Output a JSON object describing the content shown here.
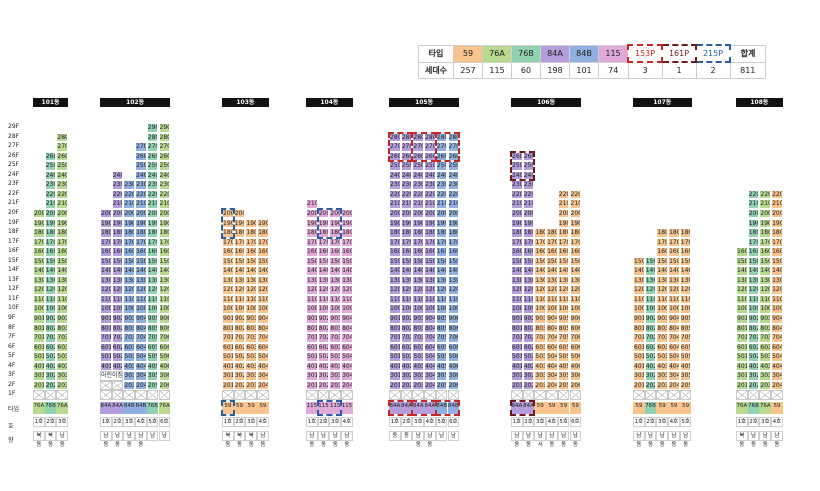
{
  "summary": {
    "type_label": "타입",
    "count_label": "세대수",
    "total_label": "합계",
    "total_value": "811",
    "types": [
      {
        "name": "59",
        "count": "257",
        "color": "#f7c48e"
      },
      {
        "name": "76A",
        "count": "115",
        "color": "#b9d98f"
      },
      {
        "name": "76B",
        "count": "60",
        "color": "#91d2b3"
      },
      {
        "name": "84A",
        "count": "198",
        "color": "#b39ddb"
      },
      {
        "name": "84B",
        "count": "101",
        "color": "#8fb0e0"
      },
      {
        "name": "115",
        "count": "74",
        "color": "#e0a9d8"
      },
      {
        "name": "153P",
        "count": "3",
        "color": "#c62828",
        "dashed": true
      },
      {
        "name": "161P",
        "count": "1",
        "color": "#6d1b1b",
        "dashed": true
      },
      {
        "name": "215P",
        "count": "2",
        "color": "#2a5fa8",
        "dashed": true
      }
    ]
  },
  "floor_labels": [
    "29F",
    "28F",
    "27F",
    "26F",
    "25F",
    "24F",
    "23F",
    "22F",
    "21F",
    "20F",
    "19F",
    "18F",
    "17F",
    "16F",
    "15F",
    "14F",
    "13F",
    "12F",
    "11F",
    "10F",
    "9F",
    "8F",
    "7F",
    "6F",
    "5F",
    "4F",
    "3F",
    "2F",
    "1F"
  ],
  "row_labels": {
    "type": "타입",
    "unit": "호",
    "dir": "향"
  },
  "colors": {
    "59": "#f7c48e",
    "76A": "#b9d98f",
    "76B": "#91d2b3",
    "84A": "#b39ddb",
    "84B": "#8fb0e0",
    "115": "#e0a9d8"
  },
  "buildings": [
    {
      "name": "101동",
      "left": 33,
      "units": [
        {
          "type": "76A",
          "top": 20,
          "bottom": 2,
          "no": "1",
          "unit_label": "1호",
          "dir": "북동"
        },
        {
          "type": "76B",
          "top": 26,
          "bottom": 2,
          "no": "2",
          "unit_label": "2호",
          "dir": "북동"
        },
        {
          "type": "76A",
          "top": 28,
          "bottom": 2,
          "no": "3",
          "unit_label": "3호",
          "dir": "남동"
        }
      ]
    },
    {
      "name": "102동",
      "left": 100,
      "note": "어린이집",
      "units": [
        {
          "type": "84A",
          "top": 20,
          "bottom": 3,
          "no": "1",
          "unit_label": "1호",
          "dir": "남동"
        },
        {
          "type": "84A",
          "top": 24,
          "bottom": 3,
          "no": "2",
          "unit_label": "2호",
          "dir": "남동"
        },
        {
          "type": "84B",
          "top": 23,
          "bottom": 2,
          "no": "3",
          "unit_label": "3호",
          "dir": "남동"
        },
        {
          "type": "84B",
          "top": 27,
          "bottom": 2,
          "no": "4",
          "unit_label": "4호",
          "dir": "남동"
        },
        {
          "type": "76B",
          "top": 29,
          "bottom": 2,
          "no": "5",
          "unit_label": "5호",
          "dir": "남"
        },
        {
          "type": "76A",
          "top": 29,
          "bottom": 2,
          "no": "6",
          "unit_label": "6호",
          "dir": "남"
        }
      ]
    },
    {
      "name": "103동",
      "left": 222,
      "units": [
        {
          "type": "59",
          "top": 20,
          "bottom": 2,
          "no": "1",
          "unit_label": "1호",
          "dir": "북동"
        },
        {
          "type": "59",
          "top": 20,
          "bottom": 2,
          "no": "2",
          "unit_label": "2호",
          "dir": "북동"
        },
        {
          "type": "59",
          "top": 19,
          "bottom": 2,
          "no": "3",
          "unit_label": "3호",
          "dir": "북동"
        },
        {
          "type": "59",
          "top": 19,
          "bottom": 2,
          "no": "4",
          "unit_label": "4호",
          "dir": "남동"
        }
      ]
    },
    {
      "name": "104동",
      "left": 306,
      "units": [
        {
          "type": "115",
          "top": 21,
          "bottom": 2,
          "no": "1",
          "unit_label": "1호",
          "dir": "남동"
        },
        {
          "type": "115",
          "top": 20,
          "bottom": 2,
          "no": "2",
          "unit_label": "2호",
          "dir": "남동"
        },
        {
          "type": "115",
          "top": 20,
          "bottom": 2,
          "no": "3",
          "unit_label": "3호",
          "dir": "남동"
        },
        {
          "type": "115",
          "top": 20,
          "bottom": 2,
          "no": "4",
          "unit_label": "4호",
          "dir": "남동"
        }
      ]
    },
    {
      "name": "105동",
      "left": 389,
      "units": [
        {
          "type": "84A",
          "top": 28,
          "bottom": 2,
          "no": "1",
          "unit_label": "1호",
          "dir": "동"
        },
        {
          "type": "84A",
          "top": 28,
          "bottom": 2,
          "no": "2",
          "unit_label": "2호",
          "dir": "동"
        },
        {
          "type": "84A",
          "top": 28,
          "bottom": 2,
          "no": "3",
          "unit_label": "3호",
          "dir": "남동"
        },
        {
          "type": "84A",
          "top": 28,
          "bottom": 2,
          "no": "4",
          "unit_label": "4호",
          "dir": "남동"
        },
        {
          "type": "84B",
          "top": 28,
          "bottom": 2,
          "no": "5",
          "unit_label": "5호",
          "dir": "남"
        },
        {
          "type": "84B",
          "top": 28,
          "bottom": 2,
          "no": "6",
          "unit_label": "6호",
          "dir": "남"
        }
      ]
    },
    {
      "name": "106동",
      "left": 511,
      "units": [
        {
          "type": "84A",
          "top": 26,
          "bottom": 2,
          "no": "1",
          "unit_label": "1호",
          "dir": "남동"
        },
        {
          "type": "84A",
          "top": 26,
          "bottom": 2,
          "no": "2",
          "unit_label": "2호",
          "dir": "남동"
        },
        {
          "type": "59",
          "top": 18,
          "bottom": 2,
          "no": "3",
          "unit_label": "3호",
          "dir": "남서"
        },
        {
          "type": "59",
          "top": 18,
          "bottom": 2,
          "no": "4",
          "unit_label": "4호",
          "dir": "남동"
        },
        {
          "type": "59",
          "top": 22,
          "bottom": 2,
          "no": "5",
          "unit_label": "5호",
          "dir": "남동"
        },
        {
          "type": "59",
          "top": 22,
          "bottom": 2,
          "no": "6",
          "unit_label": "6호",
          "dir": "남동"
        }
      ]
    },
    {
      "name": "107동",
      "left": 633,
      "units": [
        {
          "type": "59",
          "top": 15,
          "bottom": 2,
          "no": "1",
          "unit_label": "1호",
          "dir": "남동"
        },
        {
          "type": "76B",
          "top": 15,
          "bottom": 2,
          "no": "2",
          "unit_label": "2호",
          "dir": "남동"
        },
        {
          "type": "59",
          "top": 18,
          "bottom": 2,
          "no": "3",
          "unit_label": "3호",
          "dir": "남동"
        },
        {
          "type": "59",
          "top": 18,
          "bottom": 2,
          "no": "4",
          "unit_label": "4호",
          "dir": "남동"
        },
        {
          "type": "59",
          "top": 18,
          "bottom": 2,
          "no": "5",
          "unit_label": "5호",
          "dir": "남동"
        }
      ]
    },
    {
      "name": "108동",
      "left": 736,
      "units": [
        {
          "type": "76A",
          "top": 16,
          "bottom": 2,
          "no": "1",
          "unit_label": "1호",
          "dir": "북동"
        },
        {
          "type": "76B",
          "top": 22,
          "bottom": 2,
          "no": "2",
          "unit_label": "2호",
          "dir": "남동"
        },
        {
          "type": "76A",
          "top": 22,
          "bottom": 2,
          "no": "3",
          "unit_label": "3호",
          "dir": "남동"
        },
        {
          "type": "59",
          "top": 22,
          "bottom": 2,
          "no": "4",
          "unit_label": "4호",
          "dir": "남동"
        }
      ]
    }
  ],
  "penthouses": [
    {
      "building": 2,
      "units": [
        0
      ],
      "color": "#2a5fa8",
      "label": "215P"
    },
    {
      "building": 3,
      "units": [
        1,
        2
      ],
      "color": "#2a5fa8",
      "label": "215P"
    },
    {
      "building": 4,
      "units": [
        0,
        1
      ],
      "color": "#c62828",
      "label": "153P"
    },
    {
      "building": 4,
      "units": [
        2,
        3
      ],
      "color": "#c62828",
      "label": "153P"
    },
    {
      "building": 4,
      "units": [
        4,
        5
      ],
      "color": "#c62828",
      "label": "153P"
    },
    {
      "building": 5,
      "units": [
        0,
        1
      ],
      "color": "#6d1b1b",
      "label": "161P"
    }
  ]
}
